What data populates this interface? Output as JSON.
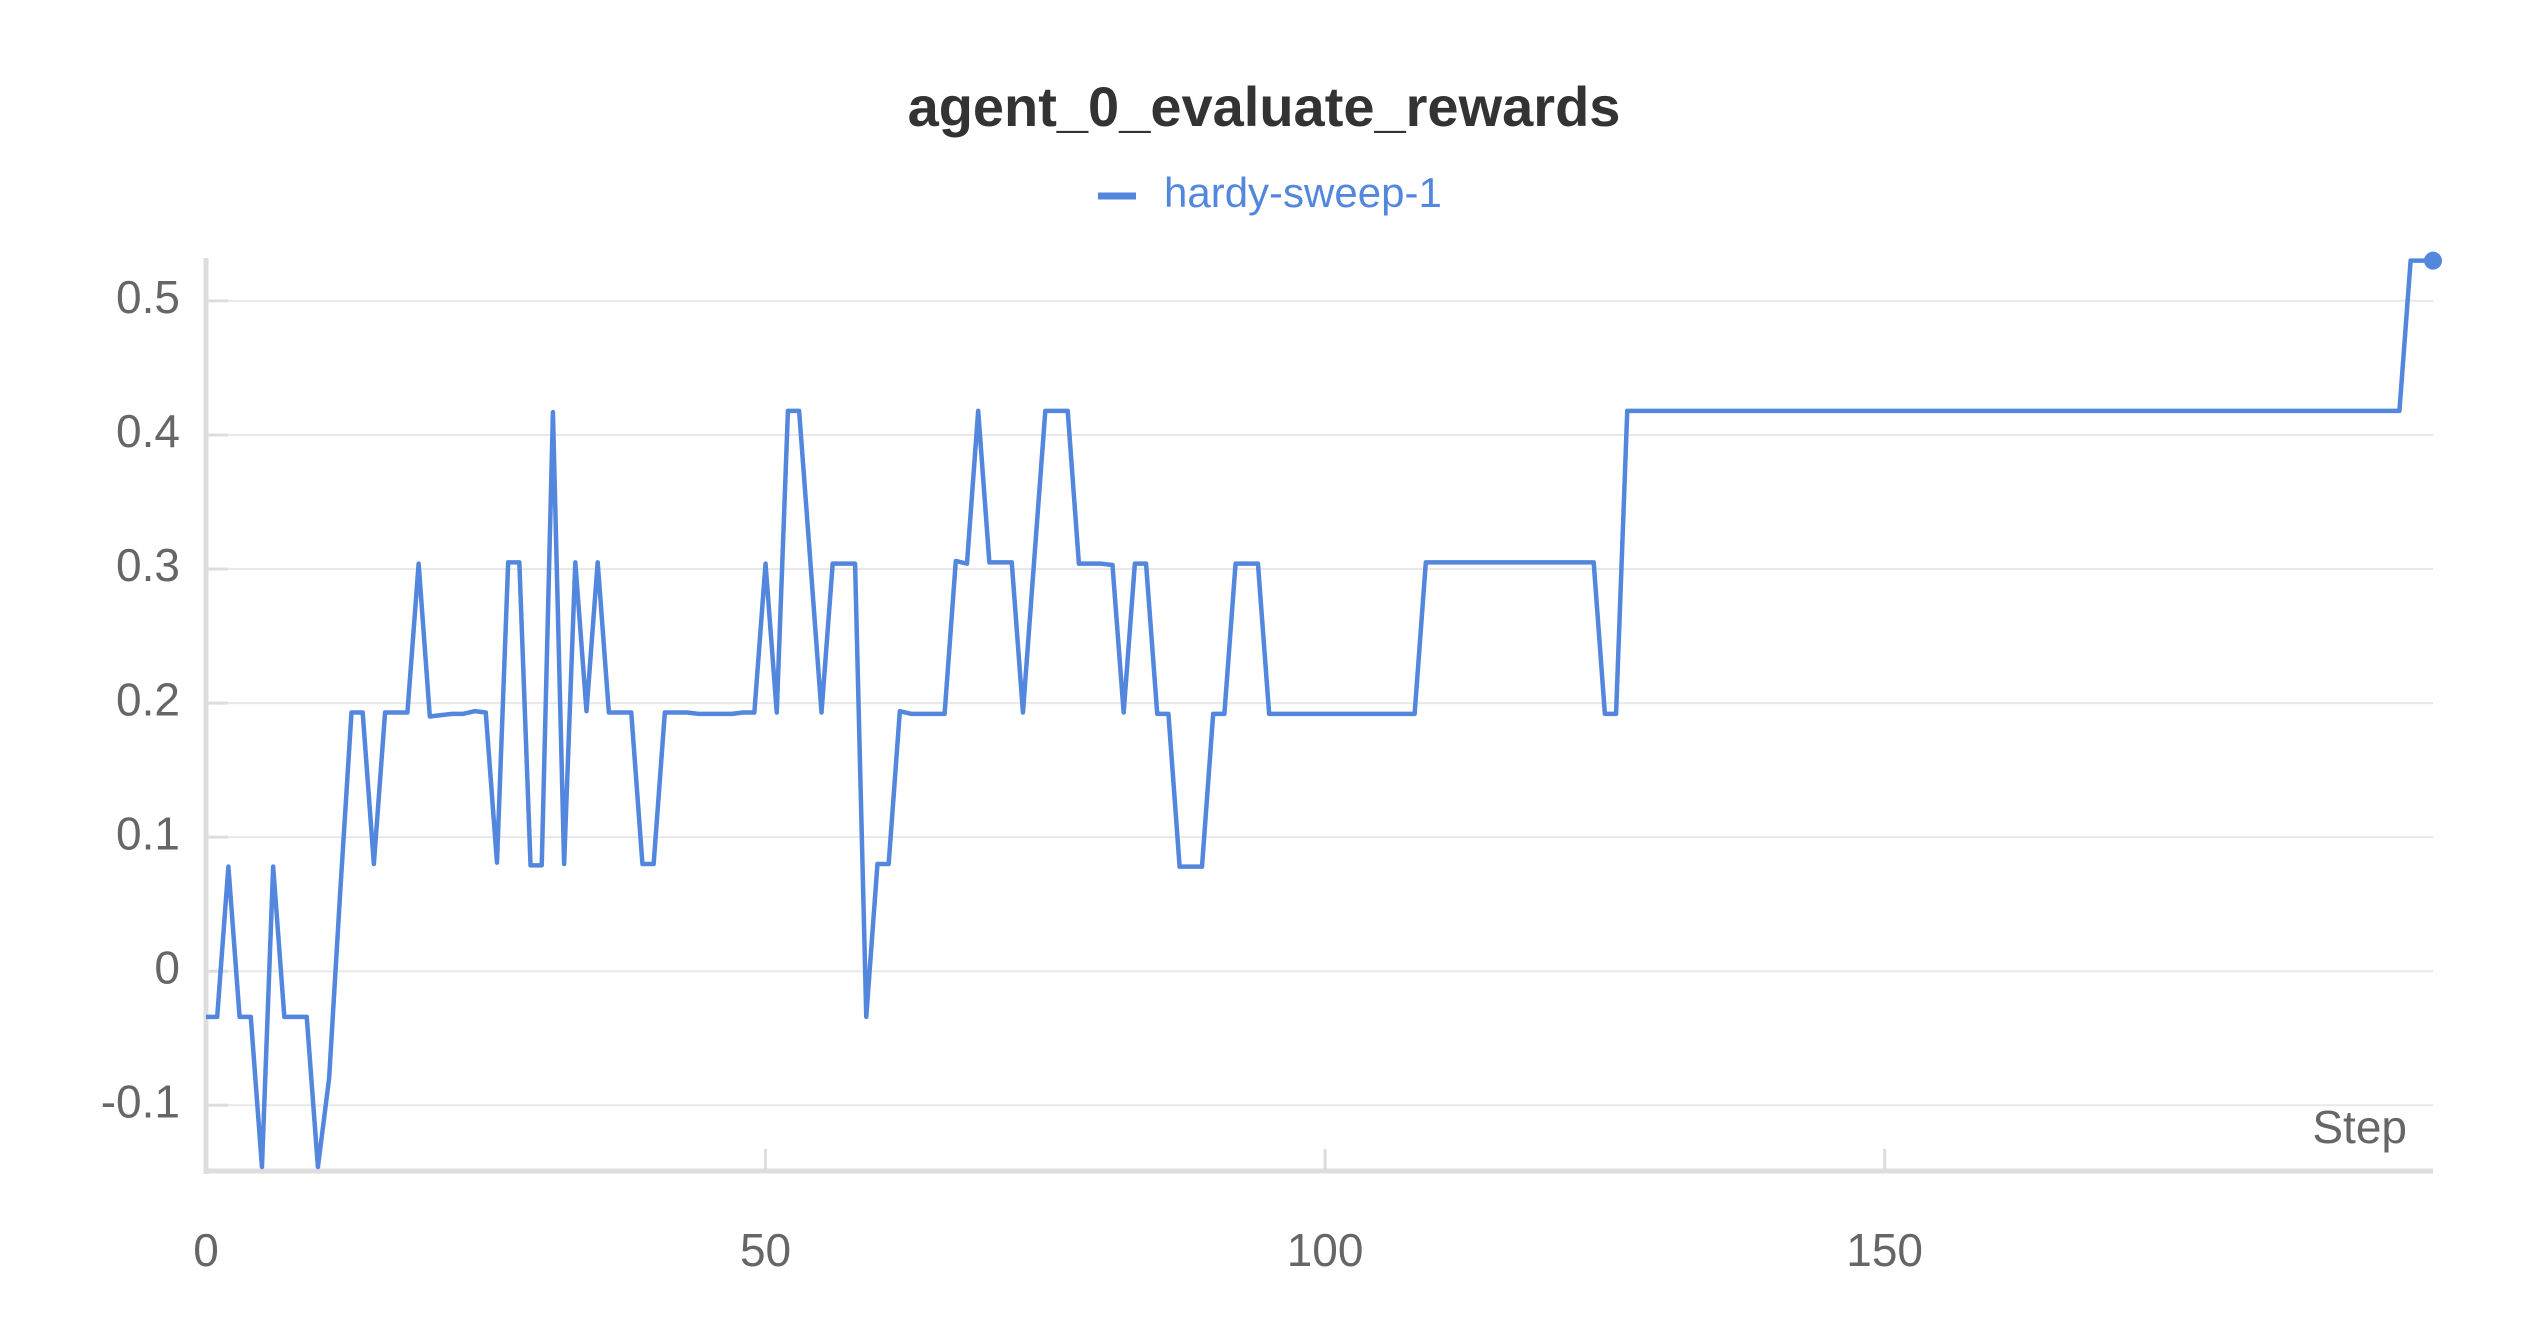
{
  "chart_data": {
    "type": "line",
    "title": "agent_0_evaluate_rewards",
    "xlabel": "Step",
    "x": [
      0,
      1,
      2,
      3,
      4,
      5,
      6,
      7,
      8,
      9,
      10,
      11,
      12,
      13,
      14,
      15,
      16,
      17,
      18,
      19,
      20,
      21,
      22,
      23,
      24,
      25,
      26,
      27,
      28,
      29,
      30,
      31,
      32,
      33,
      34,
      35,
      36,
      37,
      38,
      39,
      40,
      41,
      42,
      43,
      44,
      45,
      46,
      47,
      48,
      49,
      50,
      51,
      52,
      53,
      54,
      55,
      56,
      57,
      58,
      59,
      60,
      61,
      62,
      63,
      64,
      65,
      66,
      67,
      68,
      69,
      70,
      71,
      72,
      73,
      74,
      75,
      76,
      77,
      78,
      79,
      80,
      81,
      82,
      83,
      84,
      85,
      86,
      87,
      88,
      89,
      90,
      91,
      92,
      93,
      94,
      95,
      96,
      97,
      98,
      99,
      100,
      101,
      102,
      103,
      104,
      105,
      106,
      107,
      108,
      109,
      110,
      111,
      112,
      113,
      114,
      115,
      116,
      117,
      118,
      119,
      120,
      121,
      122,
      123,
      124,
      125,
      126,
      127,
      128,
      129,
      130,
      131,
      132,
      133,
      134,
      135,
      136,
      137,
      138,
      139,
      140,
      141,
      142,
      143,
      144,
      145,
      146,
      147,
      148,
      149,
      150,
      151,
      152,
      153,
      154,
      155,
      156,
      157,
      158,
      159,
      160,
      161,
      162,
      163,
      164,
      165,
      166,
      167,
      168,
      169,
      170,
      171,
      172,
      173,
      174,
      175,
      176,
      177,
      178,
      179,
      180,
      181,
      182,
      183,
      184,
      185,
      186,
      187,
      188,
      189,
      190,
      191,
      192,
      193,
      194,
      195,
      196,
      197,
      198,
      199
    ],
    "series": [
      {
        "name": "hardy-sweep-1",
        "color": "#5387dd",
        "values": [
          -0.034,
          -0.034,
          0.078,
          -0.034,
          -0.034,
          -0.146,
          0.078,
          -0.034,
          -0.034,
          -0.034,
          -0.146,
          -0.08,
          0.06,
          0.193,
          0.193,
          0.08,
          0.193,
          0.193,
          0.193,
          0.304,
          0.19,
          0.191,
          0.192,
          0.192,
          0.194,
          0.193,
          0.081,
          0.305,
          0.305,
          0.079,
          0.079,
          0.417,
          0.08,
          0.305,
          0.194,
          0.305,
          0.193,
          0.193,
          0.193,
          0.08,
          0.08,
          0.193,
          0.193,
          0.193,
          0.192,
          0.192,
          0.192,
          0.192,
          0.193,
          0.193,
          0.304,
          0.193,
          0.418,
          0.418,
          0.306,
          0.193,
          0.304,
          0.304,
          0.304,
          -0.034,
          0.08,
          0.08,
          0.194,
          0.192,
          0.192,
          0.192,
          0.192,
          0.306,
          0.304,
          0.418,
          0.305,
          0.305,
          0.305,
          0.193,
          0.306,
          0.418,
          0.418,
          0.418,
          0.304,
          0.304,
          0.304,
          0.303,
          0.193,
          0.304,
          0.304,
          0.192,
          0.192,
          0.078,
          0.078,
          0.078,
          0.192,
          0.192,
          0.304,
          0.304,
          0.304,
          0.192,
          0.192,
          0.192,
          0.192,
          0.192,
          0.192,
          0.192,
          0.192,
          0.192,
          0.192,
          0.192,
          0.192,
          0.192,
          0.192,
          0.305,
          0.305,
          0.305,
          0.305,
          0.305,
          0.305,
          0.305,
          0.305,
          0.305,
          0.305,
          0.305,
          0.305,
          0.305,
          0.305,
          0.305,
          0.305,
          0.192,
          0.192,
          0.418,
          0.418,
          0.418,
          0.418,
          0.418,
          0.418,
          0.418,
          0.418,
          0.418,
          0.418,
          0.418,
          0.418,
          0.418,
          0.418,
          0.418,
          0.418,
          0.418,
          0.418,
          0.418,
          0.418,
          0.418,
          0.418,
          0.418,
          0.418,
          0.418,
          0.418,
          0.418,
          0.418,
          0.418,
          0.418,
          0.418,
          0.418,
          0.418,
          0.418,
          0.418,
          0.418,
          0.418,
          0.418,
          0.418,
          0.418,
          0.418,
          0.418,
          0.418,
          0.418,
          0.418,
          0.418,
          0.418,
          0.418,
          0.418,
          0.418,
          0.418,
          0.418,
          0.418,
          0.418,
          0.418,
          0.418,
          0.418,
          0.418,
          0.418,
          0.418,
          0.418,
          0.418,
          0.418,
          0.418,
          0.418,
          0.418,
          0.418,
          0.418,
          0.418,
          0.418,
          0.53,
          0.53,
          0.53
        ]
      }
    ],
    "xlim": [
      0,
      199
    ],
    "ylim": [
      -0.149,
      0.532
    ],
    "xticks": [
      0,
      50,
      100,
      150
    ],
    "yticks": [
      -0.1,
      0,
      0.1,
      0.2,
      0.3,
      0.4,
      0.5
    ],
    "grid": true,
    "legend": "top"
  }
}
